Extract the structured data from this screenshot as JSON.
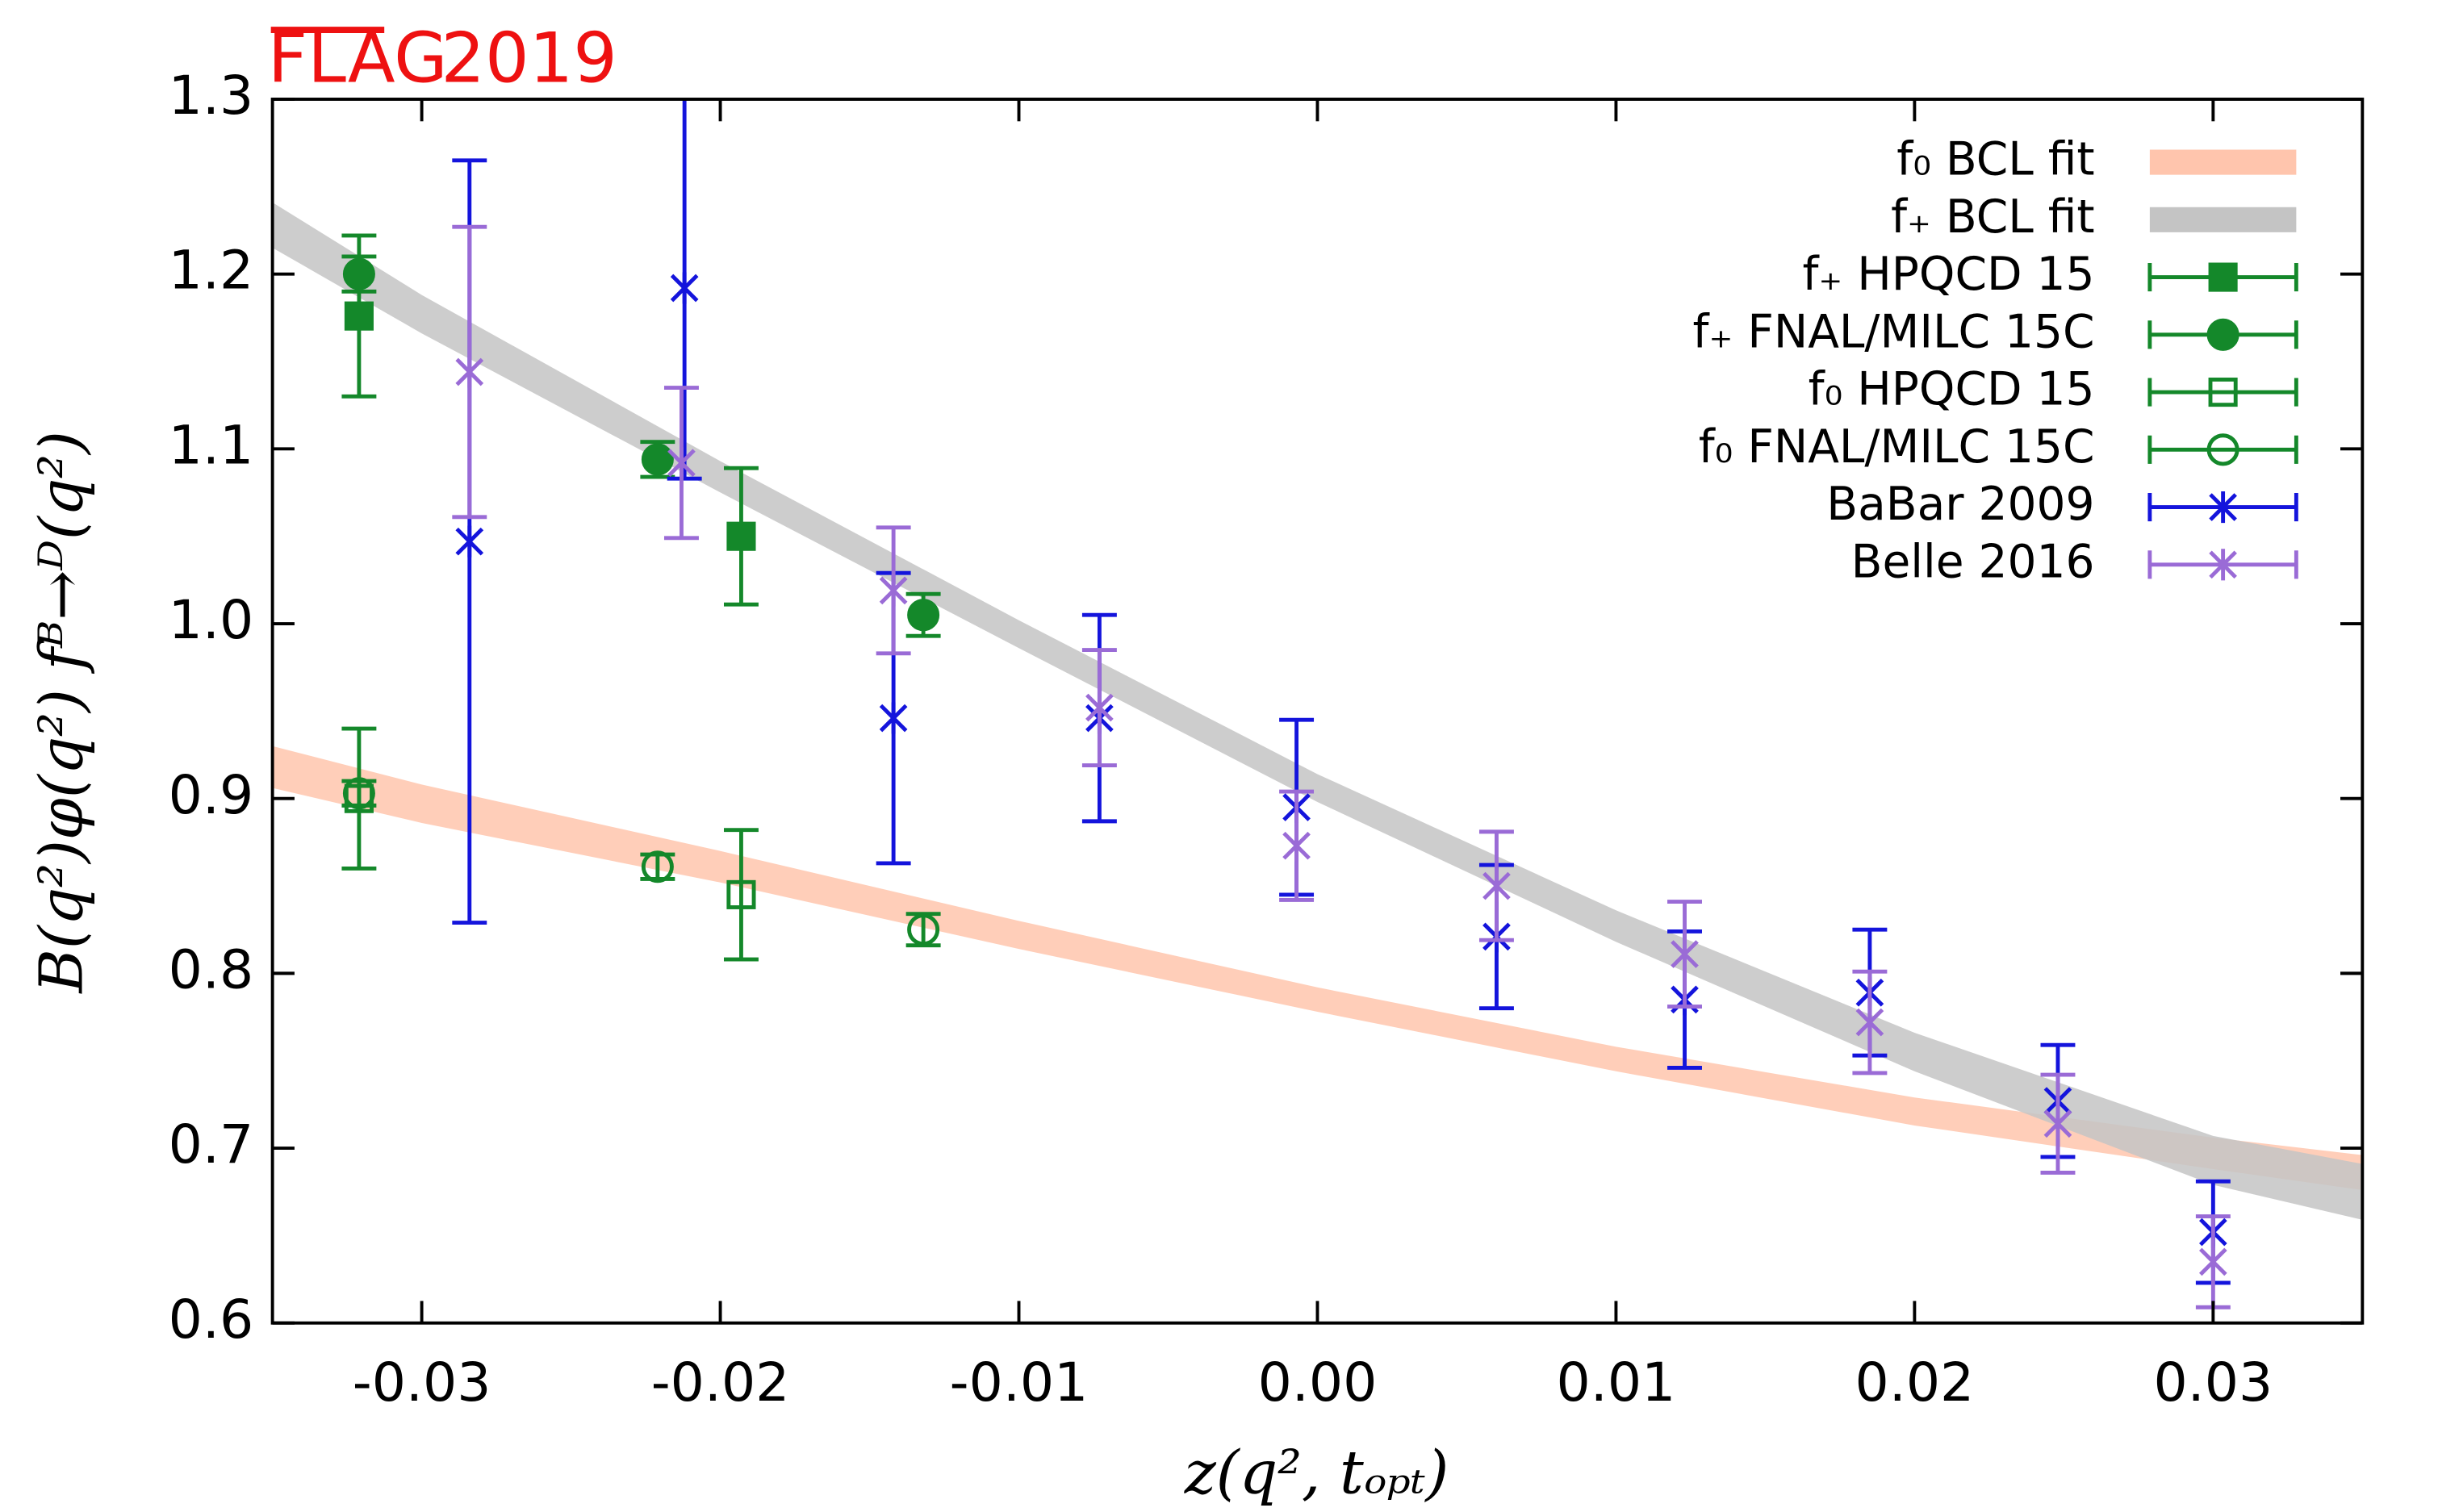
{
  "chart_data": {
    "type": "scatter",
    "annotations": [
      "FLAG",
      "2019"
    ],
    "xlabel": "z(q², tₒₚₜ)",
    "ylabel": "B(q²)φ(q²) fᴮ→ᴰ(q²)",
    "xlim": [
      -0.035,
      0.035
    ],
    "ylim": [
      0.6,
      1.3
    ],
    "xticks": [
      -0.03,
      -0.02,
      -0.01,
      {
        "value": 0,
        "label": "0.00"
      },
      0.01,
      0.02,
      0.03
    ],
    "yticks": [
      0.6,
      0.7,
      0.8,
      0.9,
      {
        "value": 1,
        "label": "1.0"
      },
      1.1,
      1.2,
      1.3
    ],
    "legend": "upper right",
    "series": [
      {
        "name": "f₀ BCL fit",
        "kind": "band",
        "color": "#ffc5ad",
        "x": [
          -0.035,
          -0.03,
          -0.02,
          -0.01,
          0,
          0.01,
          0.02,
          0.03,
          0.035
        ],
        "values": [
          0.918,
          0.897,
          0.861,
          0.822,
          0.785,
          0.751,
          0.721,
          0.697,
          0.686
        ],
        "errors": [
          0.012,
          0.011,
          0.009,
          0.008,
          0.007,
          0.007,
          0.008,
          0.009,
          0.01
        ]
      },
      {
        "name": "f₊ BCL fit",
        "kind": "band",
        "color": "#c4c4c4",
        "x": [
          -0.035,
          -0.03,
          -0.02,
          -0.01,
          0,
          0.01,
          0.02,
          0.03,
          0.035
        ],
        "values": [
          1.228,
          1.177,
          1.084,
          0.994,
          0.906,
          0.827,
          0.755,
          0.693,
          0.675
        ],
        "errors": [
          0.013,
          0.011,
          0.009,
          0.008,
          0.008,
          0.009,
          0.011,
          0.014,
          0.016
        ]
      },
      {
        "name": "f₊ HPQCD 15",
        "kind": "points",
        "marker": "square-filled",
        "color": "#14882a",
        "x": [
          -0.0321,
          -0.0193
        ],
        "values": [
          1.176,
          1.05
        ],
        "errors": [
          0.046,
          0.039
        ]
      },
      {
        "name": "f₊ FNAL/MILC 15C",
        "kind": "points",
        "marker": "circle-filled",
        "color": "#14882a",
        "x": [
          -0.0321,
          -0.0221,
          -0.0132
        ],
        "values": [
          1.2,
          1.094,
          1.005
        ],
        "errors": [
          0.01,
          0.01,
          0.012
        ]
      },
      {
        "name": "f₀ HPQCD 15",
        "kind": "points",
        "marker": "square-open",
        "color": "#14882a",
        "x": [
          -0.0321,
          -0.0193
        ],
        "values": [
          0.9,
          0.845
        ],
        "errors": [
          0.04,
          0.037
        ]
      },
      {
        "name": "f₀ FNAL/MILC 15C",
        "kind": "points",
        "marker": "circle-open",
        "color": "#14882a",
        "x": [
          -0.0321,
          -0.0221,
          -0.0132
        ],
        "values": [
          0.903,
          0.861,
          0.825
        ],
        "errors": [
          0.007,
          0.007,
          0.009
        ]
      },
      {
        "name": "BaBar 2009",
        "kind": "points",
        "marker": "star",
        "color": "#1414dc",
        "x": [
          -0.0284,
          -0.0212,
          -0.0142,
          -0.0073,
          -0.0007,
          0.006,
          0.0123,
          0.0185,
          0.0248,
          0.03
        ],
        "values": [
          1.047,
          1.192,
          0.946,
          0.946,
          0.895,
          0.821,
          0.785,
          0.789,
          0.727,
          0.652
        ],
        "errors": [
          0.218,
          0.109,
          0.083,
          0.059,
          0.05,
          0.041,
          0.039,
          0.036,
          0.032,
          0.029
        ]
      },
      {
        "name": "Belle 2016",
        "kind": "points",
        "marker": "star",
        "color": "#9a6bd6",
        "x": [
          -0.0284,
          -0.0213,
          -0.0142,
          -0.0073,
          -0.0007,
          0.006,
          0.0123,
          0.0185,
          0.0248,
          0.03
        ],
        "values": [
          1.144,
          1.092,
          1.019,
          0.952,
          0.873,
          0.85,
          0.811,
          0.772,
          0.714,
          0.635
        ],
        "errors": [
          0.083,
          0.043,
          0.036,
          0.033,
          0.031,
          0.031,
          0.03,
          0.029,
          0.028,
          0.026
        ]
      }
    ]
  }
}
